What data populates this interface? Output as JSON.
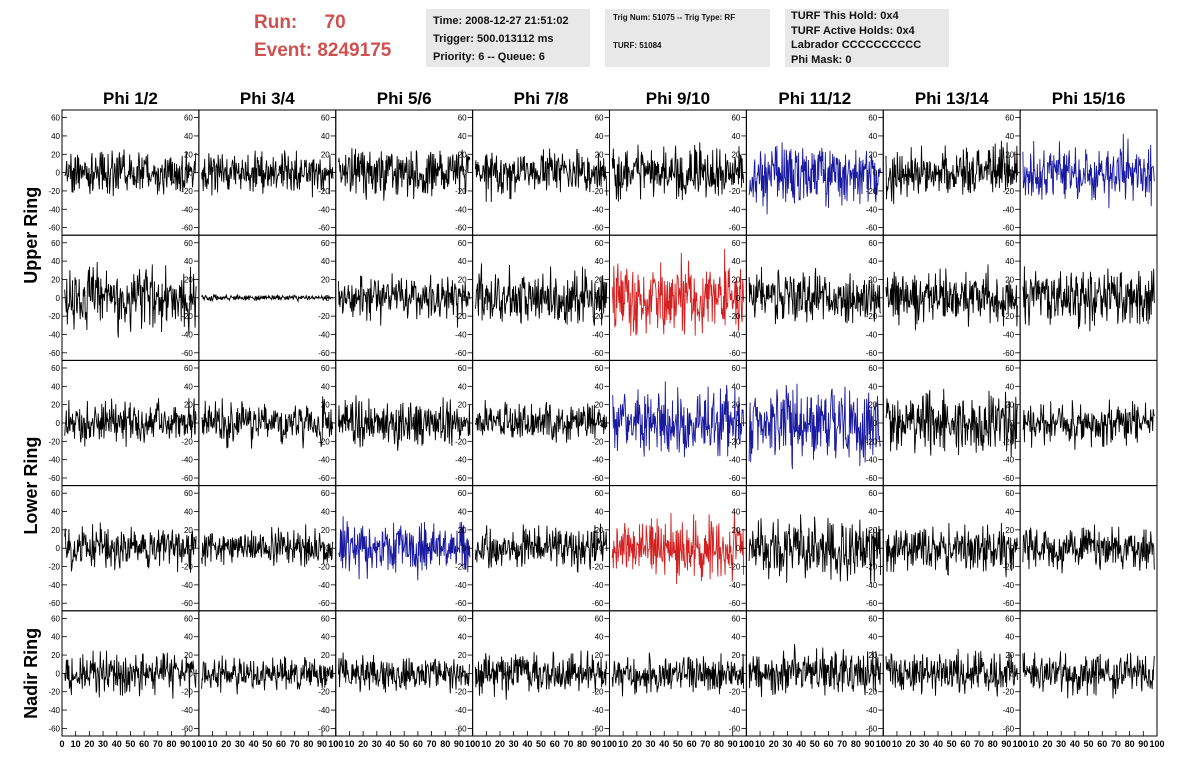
{
  "header": {
    "run_label": "Run:",
    "run_value": "70",
    "event_label": "Event:",
    "event_value": "8249175",
    "time": "Time: 2008-12-27 21:51:02",
    "trigger": "Trigger: 500.013112 ms",
    "priority": "Priority: 6 -- Queue: 6",
    "trig_num": "Trig Num: 51075 -- Trig Type: RF",
    "turf": "TURF: 51084",
    "turf_hold": "TURF This Hold: 0x4",
    "turf_active": "TURF Active Holds: 0x4",
    "labrador": "Labrador CCCCCCCCCC",
    "phi_mask": "Phi Mask: 0"
  },
  "chart_data": {
    "type": "line",
    "title": "",
    "columns": [
      "Phi 1/2",
      "Phi 3/4",
      "Phi 5/6",
      "Phi 7/8",
      "Phi 9/10",
      "Phi 11/12",
      "Phi 13/14",
      "Phi 15/16"
    ],
    "row_labels": [
      {
        "label": "Upper Ring",
        "rows": [
          0,
          1
        ]
      },
      {
        "label": "Lower Ring",
        "rows": [
          2,
          3
        ]
      },
      {
        "label": "Nadir Ring",
        "rows": [
          4
        ]
      }
    ],
    "ylim": [
      -65,
      65
    ],
    "y_ticks": [
      -60,
      -40,
      -20,
      0,
      20,
      40,
      60
    ],
    "xlim": [
      0,
      100
    ],
    "x_ticks": [
      0,
      10,
      20,
      30,
      40,
      50,
      60,
      70,
      80,
      90,
      100
    ],
    "samples": 256,
    "colors": {
      "normal": "#000000",
      "blue": "#1a1aa0",
      "red": "#d42020"
    },
    "panels": [
      [
        {
          "color": "normal",
          "amp": 14
        },
        {
          "color": "normal",
          "amp": 13
        },
        {
          "color": "normal",
          "amp": 16
        },
        {
          "color": "normal",
          "amp": 14
        },
        {
          "color": "normal",
          "amp": 17
        },
        {
          "color": "blue",
          "amp": 20
        },
        {
          "color": "normal",
          "amp": 17
        },
        {
          "color": "blue",
          "amp": 20
        }
      ],
      [
        {
          "color": "normal",
          "amp": 20
        },
        {
          "color": "normal",
          "amp": 2
        },
        {
          "color": "normal",
          "amp": 15
        },
        {
          "color": "normal",
          "amp": 18
        },
        {
          "color": "red",
          "amp": 24
        },
        {
          "color": "normal",
          "amp": 17
        },
        {
          "color": "normal",
          "amp": 17
        },
        {
          "color": "normal",
          "amp": 17
        }
      ],
      [
        {
          "color": "normal",
          "amp": 15
        },
        {
          "color": "normal",
          "amp": 14
        },
        {
          "color": "normal",
          "amp": 17
        },
        {
          "color": "normal",
          "amp": 13
        },
        {
          "color": "blue",
          "amp": 22
        },
        {
          "color": "blue",
          "amp": 24
        },
        {
          "color": "normal",
          "amp": 20
        },
        {
          "color": "normal",
          "amp": 14
        }
      ],
      [
        {
          "color": "normal",
          "amp": 14
        },
        {
          "color": "normal",
          "amp": 12
        },
        {
          "color": "blue",
          "amp": 17
        },
        {
          "color": "normal",
          "amp": 14
        },
        {
          "color": "red",
          "amp": 19
        },
        {
          "color": "normal",
          "amp": 21
        },
        {
          "color": "normal",
          "amp": 15
        },
        {
          "color": "normal",
          "amp": 15
        }
      ],
      [
        {
          "color": "normal",
          "amp": 13
        },
        {
          "color": "normal",
          "amp": 11
        },
        {
          "color": "normal",
          "amp": 12
        },
        {
          "color": "normal",
          "amp": 13
        },
        {
          "color": "normal",
          "amp": 12
        },
        {
          "color": "normal",
          "amp": 14
        },
        {
          "color": "normal",
          "amp": 13
        },
        {
          "color": "normal",
          "amp": 13
        }
      ]
    ]
  }
}
